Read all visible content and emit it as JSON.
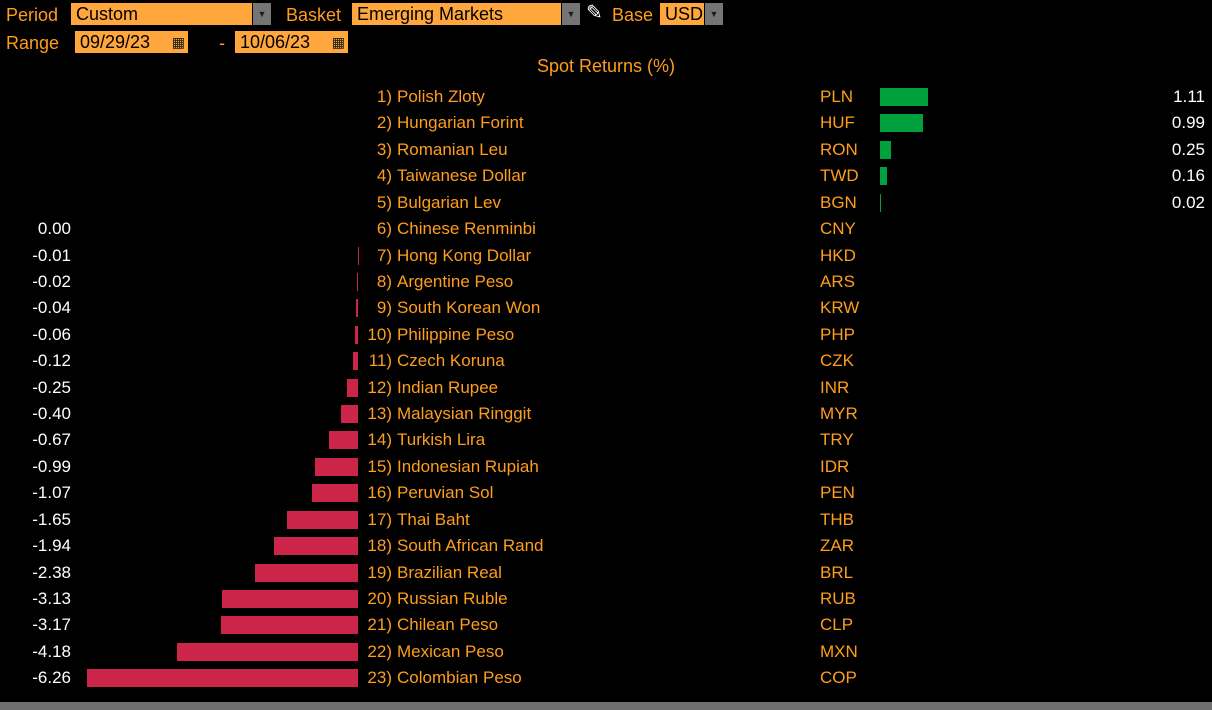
{
  "colors": {
    "accent_orange": "#ff9d1c",
    "field_orange": "#ffa63c",
    "value_text": "#ffffff"
  },
  "toolbar": {
    "period_label": "Period",
    "period_value": "Custom",
    "basket_label": "Basket",
    "basket_value": "Emerging Markets",
    "base_label": "Base",
    "base_value": "USD",
    "range_label": "Range",
    "range_start": "09/29/23",
    "range_separator": "-",
    "range_end": "10/06/23"
  },
  "chart_data": {
    "type": "bar",
    "orientation": "horizontal",
    "title": "Spot Returns (%)",
    "value_unit": "%",
    "positive_color": "#00a13d",
    "negative_color": "#cb2649",
    "rows": [
      {
        "rank": 1,
        "name": "Polish Zloty",
        "code": "PLN",
        "value": 1.11
      },
      {
        "rank": 2,
        "name": "Hungarian Forint",
        "code": "HUF",
        "value": 0.99
      },
      {
        "rank": 3,
        "name": "Romanian Leu",
        "code": "RON",
        "value": 0.25
      },
      {
        "rank": 4,
        "name": "Taiwanese Dollar",
        "code": "TWD",
        "value": 0.16
      },
      {
        "rank": 5,
        "name": "Bulgarian Lev",
        "code": "BGN",
        "value": 0.02
      },
      {
        "rank": 6,
        "name": "Chinese Renminbi",
        "code": "CNY",
        "value": 0.0
      },
      {
        "rank": 7,
        "name": "Hong Kong Dollar",
        "code": "HKD",
        "value": -0.01
      },
      {
        "rank": 8,
        "name": "Argentine Peso",
        "code": "ARS",
        "value": -0.02
      },
      {
        "rank": 9,
        "name": "South Korean Won",
        "code": "KRW",
        "value": -0.04
      },
      {
        "rank": 10,
        "name": "Philippine Peso",
        "code": "PHP",
        "value": -0.06
      },
      {
        "rank": 11,
        "name": "Czech Koruna",
        "code": "CZK",
        "value": -0.12
      },
      {
        "rank": 12,
        "name": "Indian Rupee",
        "code": "INR",
        "value": -0.25
      },
      {
        "rank": 13,
        "name": "Malaysian Ringgit",
        "code": "MYR",
        "value": -0.4
      },
      {
        "rank": 14,
        "name": "Turkish Lira",
        "code": "TRY",
        "value": -0.67
      },
      {
        "rank": 15,
        "name": "Indonesian Rupiah",
        "code": "IDR",
        "value": -0.99
      },
      {
        "rank": 16,
        "name": "Peruvian Sol",
        "code": "PEN",
        "value": -1.07
      },
      {
        "rank": 17,
        "name": "Thai Baht",
        "code": "THB",
        "value": -1.65
      },
      {
        "rank": 18,
        "name": "South African Rand",
        "code": "ZAR",
        "value": -1.94
      },
      {
        "rank": 19,
        "name": "Brazilian Real",
        "code": "BRL",
        "value": -2.38
      },
      {
        "rank": 20,
        "name": "Russian Ruble",
        "code": "RUB",
        "value": -3.13
      },
      {
        "rank": 21,
        "name": "Chilean Peso",
        "code": "CLP",
        "value": -3.17
      },
      {
        "rank": 22,
        "name": "Mexican Peso",
        "code": "MXN",
        "value": -4.18
      },
      {
        "rank": 23,
        "name": "Colombian Peso",
        "code": "COP",
        "value": -6.26
      }
    ]
  }
}
